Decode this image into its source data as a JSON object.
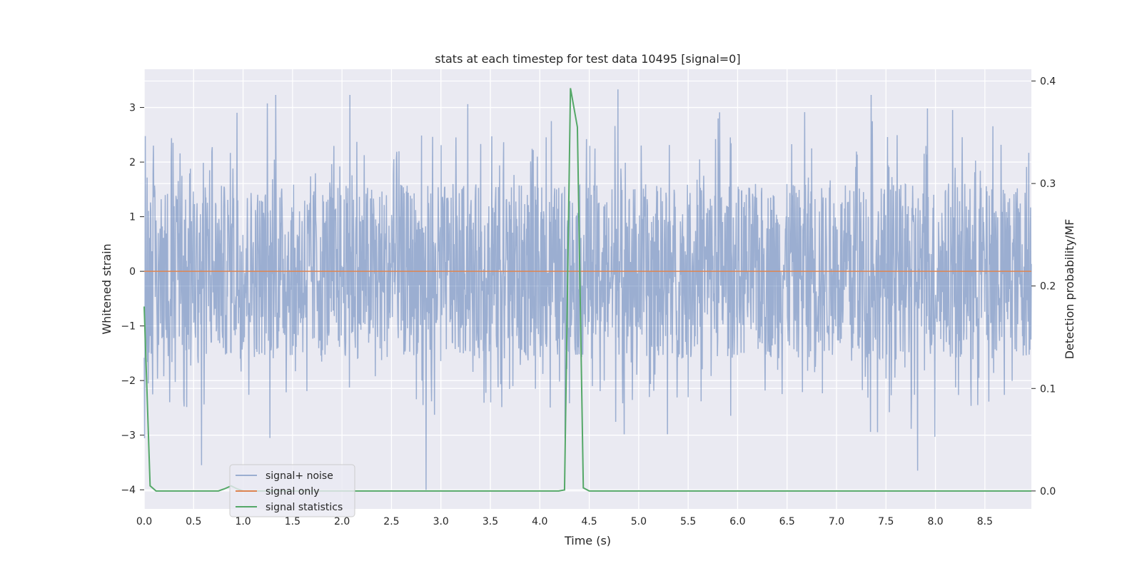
{
  "chart_data": {
    "type": "line",
    "title": "stats at each timestep for test data 10495 [signal=0]",
    "xlabel": "Time (s)",
    "ylabel": "Whitened strain",
    "ylabel_right": "Detection probability/MF",
    "xlim": [
      0.0,
      8.97
    ],
    "ylim": [
      -4.35,
      3.7
    ],
    "ylim_right": [
      -0.0175,
      0.4115
    ],
    "x_ticks": [
      "0.0",
      "0.5",
      "1.0",
      "1.5",
      "2.0",
      "2.5",
      "3.0",
      "3.5",
      "4.0",
      "4.5",
      "5.0",
      "5.5",
      "6.0",
      "6.5",
      "7.0",
      "7.5",
      "8.0",
      "8.5"
    ],
    "y_ticks": [
      "3",
      "2",
      "1",
      "0",
      "−1",
      "−2",
      "−3",
      "−4"
    ],
    "y_ticks_right": [
      "0.4",
      "0.3",
      "0.2",
      "0.1",
      "0.0"
    ],
    "grid": true,
    "legend_position": "lower-left",
    "legend": [
      "signal+ noise",
      "signal only",
      "signal statistics"
    ],
    "colors": {
      "background": "#eaeaf2",
      "grid": "#ffffff",
      "signal_noise": "#4c72b0",
      "signal_only": "#dd8452",
      "signal_statistics": "#55a868"
    },
    "series": [
      {
        "name": "signal+ noise",
        "axis": "left",
        "description": "whitened noise, roughly uniform in [-1.6, 1.6] with excursions between -4 and 3.3",
        "peaks": [
          {
            "x": 1.33,
            "y": 3.23
          },
          {
            "x": 2.08,
            "y": 3.23
          },
          {
            "x": 4.79,
            "y": 3.33
          },
          {
            "x": 7.35,
            "y": 3.23
          },
          {
            "x": 2.85,
            "y": -4.0
          },
          {
            "x": 0.58,
            "y": -3.55
          },
          {
            "x": 7.82,
            "y": -3.65
          }
        ]
      },
      {
        "name": "signal only",
        "axis": "left",
        "x": [
          0.0,
          8.97
        ],
        "y": [
          0.0,
          0.0
        ]
      },
      {
        "name": "signal statistics",
        "axis": "right",
        "x": [
          0.0,
          0.06,
          0.12,
          0.19,
          0.25,
          0.31,
          0.38,
          0.44,
          0.5,
          0.56,
          0.62,
          0.69,
          0.75,
          0.81,
          0.88,
          0.94,
          1.0,
          1.5,
          2.0,
          2.5,
          3.0,
          3.5,
          4.0,
          4.19,
          4.25,
          4.31,
          4.38,
          4.44,
          4.5,
          5.0,
          6.0,
          7.0,
          8.0,
          8.97
        ],
        "y": [
          0.18,
          0.005,
          0.0,
          0.0,
          0.0,
          0.0,
          0.0,
          0.0,
          0.0,
          0.0,
          0.0,
          0.0,
          0.0,
          0.002,
          0.005,
          0.002,
          0.0,
          0.0,
          0.0,
          0.0,
          0.0,
          0.0,
          0.0,
          0.0,
          0.001,
          0.393,
          0.355,
          0.003,
          0.0,
          0.0,
          0.0,
          0.0,
          0.0,
          0.0
        ]
      }
    ]
  }
}
